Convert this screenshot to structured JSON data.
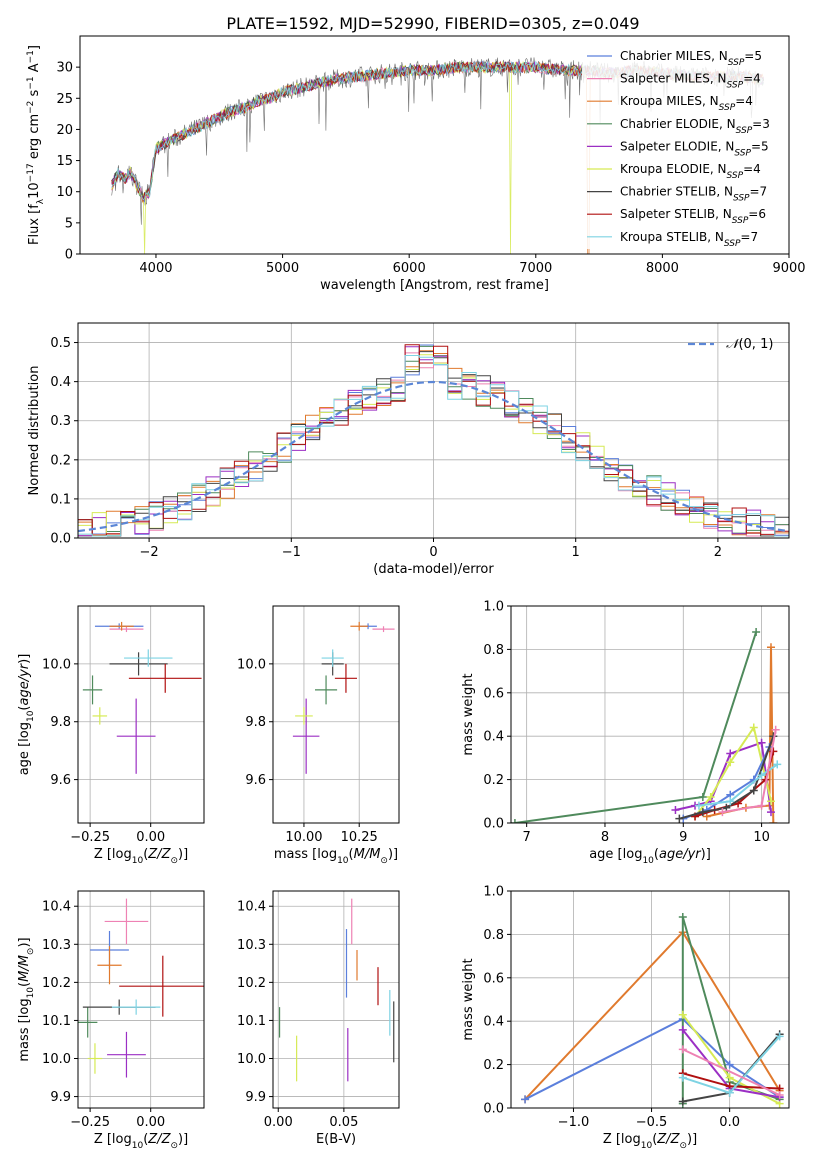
{
  "figure_title": "PLATE=1592, MJD=52990, FIBERID=0305, z=0.049",
  "chart_data": [
    {
      "type": "line",
      "panel": "spectrum",
      "title": "PLATE=1592, MJD=52990, FIBERID=0305, z=0.049",
      "xlabel": "wavelength [Angstrom, rest frame]",
      "ylabel": "Flux [f_λ 10^-17 erg cm^-2 s^-1 A^-1]",
      "xlim": [
        3400,
        9000
      ],
      "ylim": [
        0,
        35
      ],
      "xticks": [
        4000,
        5000,
        6000,
        7000,
        8000,
        9000
      ],
      "yticks": [
        0,
        5,
        10,
        15,
        20,
        25,
        30
      ],
      "grid": false,
      "legend_position": "top-right",
      "continuum": {
        "x": [
          3650,
          3700,
          3750,
          3800,
          3850,
          3900,
          3950,
          4000,
          4100,
          4200,
          4300,
          4400,
          4500,
          4600,
          4700,
          4800,
          4900,
          5000,
          5200,
          5400,
          5600,
          5800,
          6000,
          6200,
          6400,
          6600,
          6800,
          7000,
          7200,
          7400,
          7600,
          7800,
          8000,
          8200,
          8400,
          8600,
          8800
        ],
        "y": [
          11,
          13,
          12,
          13,
          11,
          9,
          10,
          17,
          18,
          19,
          20,
          21,
          22,
          23,
          23.5,
          24.5,
          25,
          26,
          27,
          28,
          28.5,
          29,
          29.5,
          29.5,
          30,
          30,
          30,
          30,
          29.5,
          29.5,
          29,
          29.5,
          29,
          28.5,
          28.5,
          28.5,
          28
        ]
      },
      "series": [
        {
          "name": "Chabrier MILES, N_SSP=5",
          "color": "#5b7fdc"
        },
        {
          "name": "Salpeter MILES, N_SSP=4",
          "color": "#ee82b4"
        },
        {
          "name": "Kroupa MILES, N_SSP=4",
          "color": "#e07a2e"
        },
        {
          "name": "Chabrier ELODIE, N_SSP=3",
          "color": "#4f8a5c"
        },
        {
          "name": "Salpeter ELODIE, N_SSP=5",
          "color": "#9b2fc4"
        },
        {
          "name": "Kroupa ELODIE, N_SSP=4",
          "color": "#d6ea55"
        },
        {
          "name": "Chabrier STELIB, N_SSP=7",
          "color": "#444444"
        },
        {
          "name": "Salpeter STELIB, N_SSP=6",
          "color": "#b01010"
        },
        {
          "name": "Kroupa STELIB, N_SSP=7",
          "color": "#7ed3e3"
        }
      ]
    },
    {
      "type": "line",
      "panel": "residual-histogram",
      "xlabel": "(data-model)/error",
      "ylabel": "Normed distribution",
      "xlim": [
        -2.5,
        2.5
      ],
      "ylim": [
        0,
        0.55
      ],
      "xticks": [
        -2,
        -1,
        0,
        1,
        2
      ],
      "yticks": [
        0.0,
        0.1,
        0.2,
        0.3,
        0.4,
        0.5
      ],
      "grid": true,
      "legend_position": "top-right",
      "legend_label": "N(0, 1)",
      "bin_width": 0.1,
      "gaussian_color": "#5b86d6"
    },
    {
      "type": "scatter",
      "panel": "age-vs-Z",
      "xlabel": "Z [log10(Z/Z☉)]",
      "ylabel": "age  [log10(age/yr)]",
      "xlim": [
        -0.3,
        0.22
      ],
      "ylim": [
        9.45,
        10.2
      ],
      "xticks": [
        -0.25,
        0.0
      ],
      "yticks": [
        9.6,
        9.8,
        10.0
      ],
      "grid": true,
      "points": [
        {
          "x": -0.13,
          "xerr": 0.1,
          "y": 10.13,
          "yerr": 0.01,
          "color": "#5b7fdc"
        },
        {
          "x": -0.1,
          "xerr": 0.07,
          "y": 10.12,
          "yerr": 0.01,
          "color": "#ee82b4"
        },
        {
          "x": -0.12,
          "xerr": 0.05,
          "y": 10.13,
          "yerr": 0.015,
          "color": "#e07a2e"
        },
        {
          "x": -0.24,
          "xerr": 0.04,
          "y": 9.91,
          "yerr": 0.05,
          "color": "#4f8a5c"
        },
        {
          "x": -0.06,
          "xerr": 0.08,
          "y": 9.75,
          "yerr": 0.13,
          "color": "#9b2fc4"
        },
        {
          "x": -0.21,
          "xerr": 0.03,
          "y": 9.82,
          "yerr": 0.03,
          "color": "#d6ea55"
        },
        {
          "x": -0.05,
          "xerr": 0.12,
          "y": 10.0,
          "yerr": 0.04,
          "color": "#444444"
        },
        {
          "x": 0.06,
          "xerr": 0.15,
          "y": 9.95,
          "yerr": 0.05,
          "color": "#b01010"
        },
        {
          "x": -0.01,
          "xerr": 0.1,
          "y": 10.02,
          "yerr": 0.03,
          "color": "#7ed3e3"
        }
      ]
    },
    {
      "type": "scatter",
      "panel": "age-vs-mass",
      "xlabel": "mass [log10(M/M☉)]",
      "xlim": [
        9.86,
        10.43
      ],
      "ylim": [
        9.45,
        10.2
      ],
      "xticks": [
        10.0,
        10.25
      ],
      "yticks": [
        9.6,
        9.8,
        10.0
      ],
      "grid": true,
      "points": [
        {
          "x": 10.29,
          "xerr": 0.04,
          "y": 10.13,
          "yerr": 0.01,
          "color": "#5b7fdc"
        },
        {
          "x": 10.36,
          "xerr": 0.05,
          "y": 10.12,
          "yerr": 0.01,
          "color": "#ee82b4"
        },
        {
          "x": 10.25,
          "xerr": 0.04,
          "y": 10.13,
          "yerr": 0.015,
          "color": "#e07a2e"
        },
        {
          "x": 10.1,
          "xerr": 0.05,
          "y": 9.91,
          "yerr": 0.05,
          "color": "#4f8a5c"
        },
        {
          "x": 10.01,
          "xerr": 0.06,
          "y": 9.75,
          "yerr": 0.13,
          "color": "#9b2fc4"
        },
        {
          "x": 10.0,
          "xerr": 0.04,
          "y": 9.82,
          "yerr": 0.03,
          "color": "#d6ea55"
        },
        {
          "x": 10.13,
          "xerr": 0.05,
          "y": 10.0,
          "yerr": 0.04,
          "color": "#444444"
        },
        {
          "x": 10.19,
          "xerr": 0.05,
          "y": 9.95,
          "yerr": 0.05,
          "color": "#b01010"
        },
        {
          "x": 10.13,
          "xerr": 0.05,
          "y": 10.02,
          "yerr": 0.03,
          "color": "#7ed3e3"
        }
      ]
    },
    {
      "type": "line",
      "panel": "mass-weight-vs-age",
      "xlabel": "age  [log10(age/yr)]",
      "ylabel": "mass weight",
      "xlim": [
        6.8,
        10.35
      ],
      "ylim": [
        0,
        1.0
      ],
      "xticks": [
        7,
        8,
        9,
        10
      ],
      "yticks": [
        0.0,
        0.2,
        0.4,
        0.6,
        0.8,
        1.0
      ],
      "grid": true,
      "series": [
        {
          "color": "#4f8a5c",
          "x": [
            6.85,
            9.25,
            9.93
          ],
          "y": [
            0.0,
            0.12,
            0.88
          ]
        },
        {
          "color": "#e07a2e",
          "x": [
            9.3,
            9.8,
            10.1,
            10.12,
            10.15
          ],
          "y": [
            0.03,
            0.07,
            0.08,
            0.81,
            0.0
          ]
        },
        {
          "color": "#9b2fc4",
          "x": [
            8.9,
            9.15,
            9.35,
            9.6,
            10.0,
            10.12
          ],
          "y": [
            0.06,
            0.08,
            0.1,
            0.32,
            0.37,
            0.05
          ]
        },
        {
          "color": "#d6ea55",
          "x": [
            9.15,
            9.35,
            9.6,
            9.9,
            10.12
          ],
          "y": [
            0.03,
            0.12,
            0.28,
            0.44,
            0.1
          ]
        },
        {
          "color": "#5b7fdc",
          "x": [
            9.0,
            9.3,
            9.6,
            9.9,
            10.1
          ],
          "y": [
            0.02,
            0.06,
            0.13,
            0.2,
            0.35
          ]
        },
        {
          "color": "#b01010",
          "x": [
            9.15,
            9.4,
            9.7,
            10.05,
            10.15
          ],
          "y": [
            0.03,
            0.06,
            0.09,
            0.2,
            0.33
          ]
        },
        {
          "color": "#444444",
          "x": [
            8.95,
            9.25,
            9.55,
            9.9,
            10.15
          ],
          "y": [
            0.02,
            0.05,
            0.07,
            0.15,
            0.4
          ]
        },
        {
          "color": "#7ed3e3",
          "x": [
            9.2,
            9.6,
            10.0,
            10.2
          ],
          "y": [
            0.08,
            0.1,
            0.22,
            0.27
          ]
        },
        {
          "color": "#ee82b4",
          "x": [
            9.5,
            10.0,
            10.18
          ],
          "y": [
            0.05,
            0.08,
            0.43
          ]
        }
      ]
    },
    {
      "type": "scatter",
      "panel": "mass-vs-Z",
      "xlabel": "Z [log10(Z/Z☉)]",
      "ylabel": "mass [log10(M/M☉)]",
      "xlim": [
        -0.3,
        0.22
      ],
      "ylim": [
        9.87,
        10.44
      ],
      "xticks": [
        -0.25,
        0.0
      ],
      "yticks": [
        9.9,
        10.0,
        10.1,
        10.2,
        10.3,
        10.4
      ],
      "grid": true,
      "points": [
        {
          "x": -0.17,
          "xerr": 0.08,
          "y": 10.285,
          "yerr": 0.05,
          "color": "#5b7fdc"
        },
        {
          "x": -0.1,
          "xerr": 0.09,
          "y": 10.36,
          "yerr": 0.06,
          "color": "#ee82b4"
        },
        {
          "x": -0.17,
          "xerr": 0.05,
          "y": 10.245,
          "yerr": 0.05,
          "color": "#e07a2e"
        },
        {
          "x": -0.26,
          "xerr": 0.04,
          "y": 10.095,
          "yerr": 0.04,
          "color": "#4f8a5c"
        },
        {
          "x": -0.1,
          "xerr": 0.08,
          "y": 10.01,
          "yerr": 0.06,
          "color": "#9b2fc4"
        },
        {
          "x": -0.23,
          "xerr": 0.03,
          "y": 10.0,
          "yerr": 0.04,
          "color": "#d6ea55"
        },
        {
          "x": -0.13,
          "xerr": 0.15,
          "y": 10.135,
          "yerr": 0.02,
          "color": "#444444"
        },
        {
          "x": 0.05,
          "xerr": 0.18,
          "y": 10.19,
          "yerr": 0.08,
          "color": "#b01010"
        },
        {
          "x": -0.06,
          "xerr": 0.1,
          "y": 10.135,
          "yerr": 0.02,
          "color": "#7ed3e3"
        }
      ]
    },
    {
      "type": "scatter",
      "panel": "mass-vs-ebv",
      "xlabel": "E(B-V)",
      "xlim": [
        -0.004,
        0.092
      ],
      "ylim": [
        9.87,
        10.44
      ],
      "xticks": [
        0.0,
        0.05
      ],
      "yticks": [
        9.9,
        10.0,
        10.1,
        10.2,
        10.3,
        10.4
      ],
      "grid": true,
      "points": [
        {
          "x": 0.052,
          "y": 10.25,
          "yerr": 0.09,
          "color": "#5b7fdc"
        },
        {
          "x": 0.056,
          "y": 10.36,
          "yerr": 0.06,
          "color": "#ee82b4"
        },
        {
          "x": 0.06,
          "y": 10.245,
          "yerr": 0.04,
          "color": "#e07a2e"
        },
        {
          "x": 0.001,
          "y": 10.095,
          "yerr": 0.04,
          "color": "#4f8a5c"
        },
        {
          "x": 0.053,
          "y": 10.01,
          "yerr": 0.07,
          "color": "#9b2fc4"
        },
        {
          "x": 0.014,
          "y": 10.0,
          "yerr": 0.06,
          "color": "#d6ea55"
        },
        {
          "x": 0.088,
          "y": 10.07,
          "yerr": 0.08,
          "color": "#444444"
        },
        {
          "x": 0.076,
          "y": 10.19,
          "yerr": 0.05,
          "color": "#b01010"
        },
        {
          "x": 0.085,
          "y": 10.12,
          "yerr": 0.06,
          "color": "#7ed3e3"
        }
      ]
    },
    {
      "type": "line",
      "panel": "mass-weight-vs-Z",
      "xlabel": "Z [log10(Z/Z☉)]",
      "ylabel": "mass weight",
      "xlim": [
        -1.4,
        0.38
      ],
      "ylim": [
        0,
        1.0
      ],
      "xticks": [
        -1.0,
        -0.5,
        0.0
      ],
      "yticks": [
        0.0,
        0.2,
        0.4,
        0.6,
        0.8,
        1.0
      ],
      "grid": true,
      "series": [
        {
          "color": "#e07a2e",
          "x": [
            -1.31,
            -0.3,
            0.32
          ],
          "y": [
            0.04,
            0.81,
            0.08
          ]
        },
        {
          "color": "#5b7fdc",
          "x": [
            -1.31,
            -0.3,
            0.0,
            0.32
          ],
          "y": [
            0.04,
            0.41,
            0.2,
            0.05
          ]
        },
        {
          "color": "#4f8a5c",
          "x": [
            -0.3,
            -0.3,
            0.0,
            0.32
          ],
          "y": [
            0.02,
            0.88,
            0.12,
            0.04
          ]
        },
        {
          "color": "#d6ea55",
          "x": [
            -0.3,
            0.0,
            0.32
          ],
          "y": [
            0.43,
            0.14,
            0.02
          ]
        },
        {
          "color": "#9b2fc4",
          "x": [
            -0.3,
            0.0,
            0.32
          ],
          "y": [
            0.36,
            0.09,
            0.05
          ]
        },
        {
          "color": "#b01010",
          "x": [
            -0.3,
            0.0,
            0.32
          ],
          "y": [
            0.16,
            0.1,
            0.09
          ]
        },
        {
          "color": "#444444",
          "x": [
            -0.3,
            0.0,
            0.32
          ],
          "y": [
            0.03,
            0.07,
            0.34
          ]
        },
        {
          "color": "#7ed3e3",
          "x": [
            -0.3,
            0.0,
            0.32
          ],
          "y": [
            0.14,
            0.07,
            0.33
          ]
        },
        {
          "color": "#ee82b4",
          "x": [
            -0.3,
            0.32
          ],
          "y": [
            0.27,
            0.06
          ]
        }
      ]
    }
  ]
}
